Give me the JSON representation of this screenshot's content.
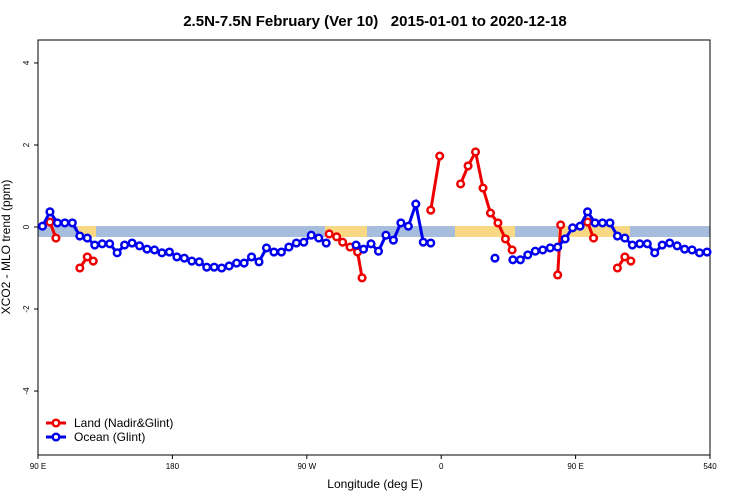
{
  "chart_data": {
    "type": "line",
    "title": "2.5N-7.5N February (Ver 10)   2015-01-01 to 2020-12-18",
    "x_label": "Longitude (deg E)",
    "y_label": "XCO2 - MLO trend (ppm)",
    "xlim": [
      90,
      540
    ],
    "xticks": [
      {
        "value": 90,
        "label": "90 E"
      },
      180,
      {
        "value": 270,
        "label": "90 W"
      },
      {
        "value": 360,
        "label": "0"
      },
      {
        "value": 450,
        "label": "90 E"
      },
      540
    ],
    "ylim": [
      -5.56,
      4.56
    ],
    "yticks": [
      -4,
      -2,
      0,
      2,
      4
    ],
    "legend": "bottom-left",
    "series": [
      {
        "name": "Land (Nadir&Glint)",
        "color": "#ee0000",
        "x": [
          98,
          102,
          null,
          118,
          123,
          127,
          null,
          285,
          290,
          294,
          299,
          304,
          307,
          null,
          353,
          359,
          null,
          373,
          378,
          383,
          388,
          393,
          398,
          403,
          407.5,
          null,
          438,
          440,
          null,
          458,
          462,
          null,
          478,
          483,
          487
        ],
        "values": [
          0.12,
          -0.27,
          null,
          -1.0,
          -0.73,
          -0.83,
          null,
          -0.17,
          -0.24,
          -0.37,
          -0.49,
          -0.61,
          -1.24,
          null,
          0.41,
          1.73,
          null,
          1.05,
          1.49,
          1.83,
          0.95,
          0.34,
          0.1,
          -0.29,
          -0.56,
          null,
          -1.17,
          0.05,
          null,
          0.12,
          -0.27,
          null,
          -1.0,
          -0.73,
          -0.83
        ]
      },
      {
        "name": "Ocean (Glint)",
        "color": "#0000ee",
        "x": [
          93,
          98,
          103,
          108,
          113,
          118,
          123,
          128,
          133,
          138,
          143,
          148,
          153,
          158,
          163,
          168,
          173,
          178,
          183,
          188,
          193,
          198,
          203,
          208,
          213,
          218,
          223,
          228,
          233,
          238,
          243,
          248,
          253,
          258,
          263,
          268,
          273,
          278,
          283,
          null,
          303,
          308,
          313,
          318,
          323,
          328,
          333,
          338,
          343,
          348,
          353,
          null,
          396,
          null,
          408,
          413,
          418,
          423,
          428,
          433,
          438,
          443,
          448,
          453,
          458,
          463,
          468,
          473,
          478,
          483,
          488,
          493,
          498,
          503,
          508,
          513,
          518,
          523,
          528,
          533,
          538
        ],
        "values": [
          0.02,
          0.37,
          0.1,
          0.1,
          0.1,
          -0.22,
          -0.27,
          -0.44,
          -0.41,
          -0.41,
          -0.63,
          -0.44,
          -0.39,
          -0.46,
          -0.54,
          -0.56,
          -0.63,
          -0.61,
          -0.73,
          -0.76,
          -0.83,
          -0.85,
          -0.98,
          -0.98,
          -1.0,
          -0.95,
          -0.88,
          -0.88,
          -0.73,
          -0.85,
          -0.51,
          -0.61,
          -0.61,
          -0.49,
          -0.39,
          -0.37,
          -0.2,
          -0.27,
          -0.39,
          null,
          -0.44,
          -0.54,
          -0.41,
          -0.59,
          -0.2,
          -0.32,
          0.1,
          0.02,
          0.56,
          -0.37,
          -0.39,
          null,
          -0.76,
          null,
          -0.8,
          -0.8,
          -0.68,
          -0.59,
          -0.56,
          -0.51,
          -0.49,
          -0.29,
          -0.02,
          0.02,
          0.37,
          0.1,
          0.1,
          0.1,
          -0.22,
          -0.27,
          -0.44,
          -0.41,
          -0.41,
          -0.63,
          -0.44,
          -0.39,
          -0.46,
          -0.54,
          -0.56,
          -0.63,
          -0.61
        ]
      }
    ]
  }
}
